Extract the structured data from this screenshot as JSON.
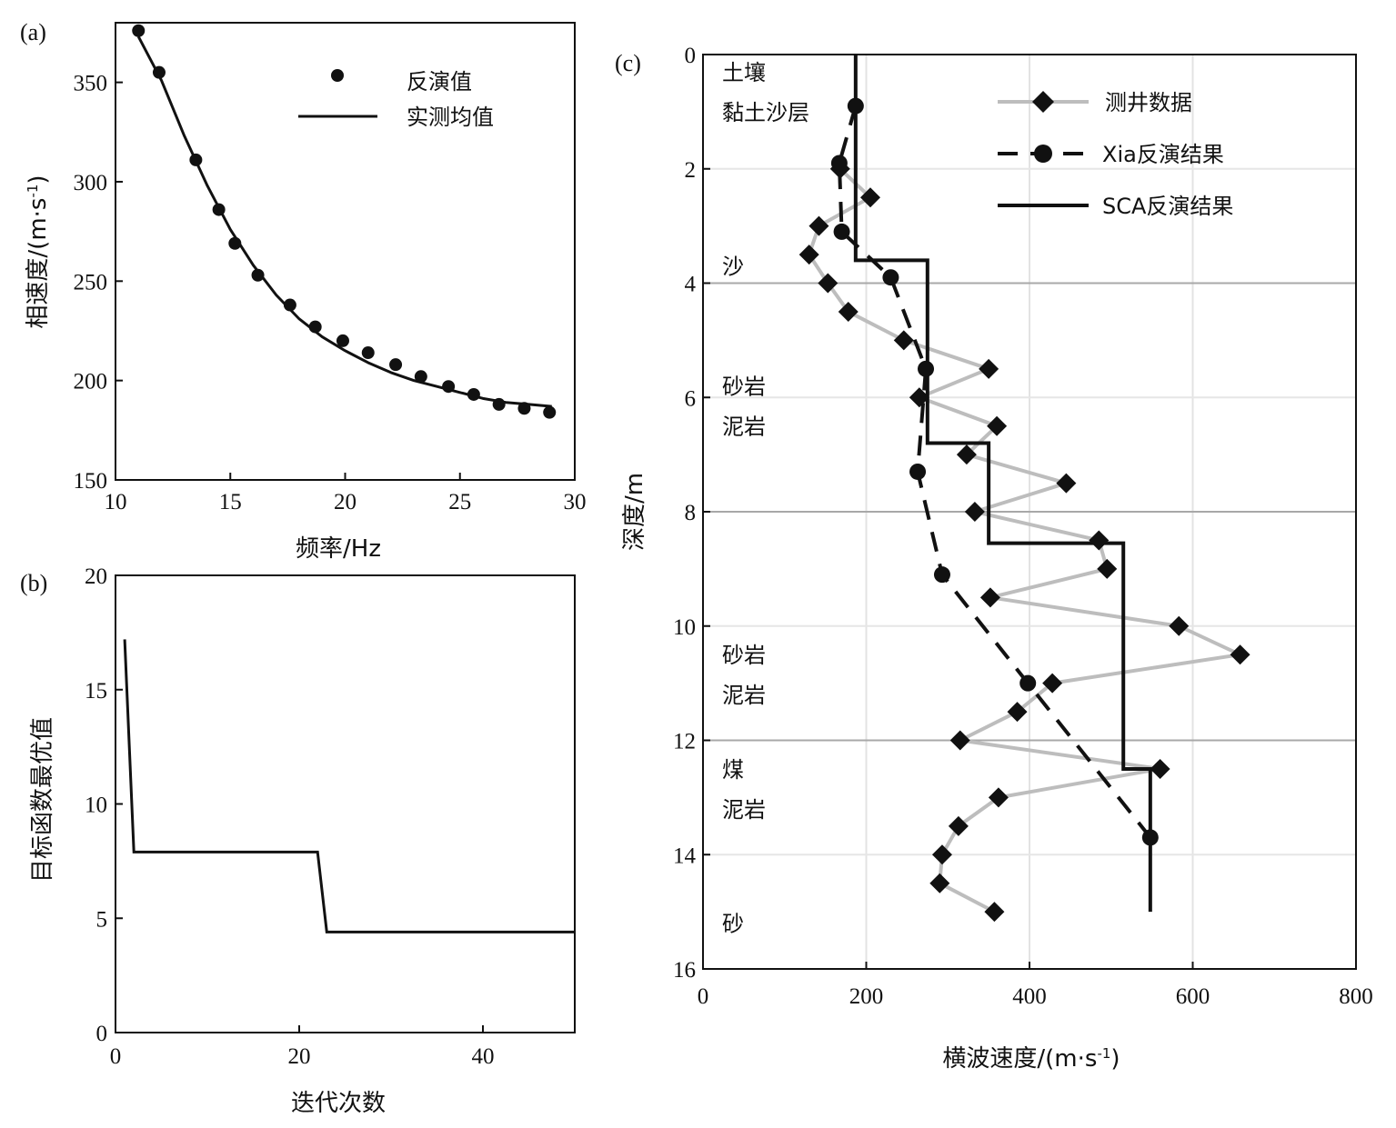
{
  "chart_data": [
    {
      "panel_label": "(a)",
      "type": "scatter",
      "xlabel": "频率/Hz",
      "ylabel_main": "相速度/(m·s",
      "ylabel_sup": "-1",
      "ylabel_end": ")",
      "xlim": [
        10,
        30
      ],
      "ylim": [
        150,
        380
      ],
      "xticks": [
        "10",
        "15",
        "20",
        "25",
        "30"
      ],
      "yticks": [
        "150",
        "200",
        "250",
        "300",
        "350"
      ],
      "legend": [
        "反演值",
        "实测均值"
      ],
      "series": [
        {
          "name": "反演值",
          "x": [
            11.0,
            11.9,
            13.5,
            14.5,
            15.2,
            16.2,
            17.6,
            18.7,
            19.9,
            21.0,
            22.2,
            23.3,
            24.5,
            25.6,
            26.7,
            27.8,
            28.9
          ],
          "y": [
            376,
            355,
            311,
            286,
            269,
            253,
            238,
            227,
            220,
            214,
            208,
            202,
            197,
            193,
            188,
            186,
            184
          ]
        },
        {
          "name": "实测均值",
          "x": [
            11.0,
            12.0,
            13.0,
            14.0,
            15.0,
            16.0,
            17.0,
            18.0,
            19.0,
            20.0,
            21.0,
            22.0,
            23.0,
            24.0,
            25.0,
            26.0,
            27.0,
            28.0,
            29.0
          ],
          "y": [
            373,
            351,
            323,
            298,
            276,
            258,
            243,
            231,
            222,
            215,
            209,
            204,
            200,
            197,
            194,
            191,
            189,
            188,
            187
          ]
        }
      ]
    },
    {
      "panel_label": "(b)",
      "type": "line",
      "xlabel": "迭代次数",
      "ylabel": "目标函数最优值",
      "xlim": [
        0,
        50
      ],
      "ylim": [
        0,
        20
      ],
      "xticks": [
        "0",
        "20",
        "40"
      ],
      "yticks": [
        "0",
        "5",
        "10",
        "15",
        "20"
      ],
      "series": [
        {
          "x": [
            1,
            2,
            22,
            23,
            50
          ],
          "y": [
            17.2,
            7.9,
            7.9,
            4.4,
            4.4
          ]
        }
      ]
    },
    {
      "panel_label": "(c)",
      "type": "line",
      "xlabel_main": "横波速度/(m·s",
      "xlabel_sup": "-1",
      "xlabel_end": ")",
      "ylabel": "深度/m",
      "xlim": [
        0,
        800
      ],
      "ylim": [
        16,
        0
      ],
      "xticks": [
        "0",
        "200",
        "400",
        "600",
        "800"
      ],
      "yticks": [
        "0",
        "2",
        "4",
        "6",
        "8",
        "10",
        "12",
        "14",
        "16"
      ],
      "legend": [
        "测井数据",
        "Xia反演结果",
        "SCA反演结果"
      ],
      "layer_labels": [
        {
          "text": "土壤",
          "depth": 0.3
        },
        {
          "text": "黏土沙层",
          "depth": 1.0
        },
        {
          "text": "沙",
          "depth": 3.7
        },
        {
          "text": "砂岩",
          "depth": 5.8
        },
        {
          "text": "泥岩",
          "depth": 6.5
        },
        {
          "text": "砂岩",
          "depth": 10.5
        },
        {
          "text": "泥岩",
          "depth": 11.2
        },
        {
          "text": "煤",
          "depth": 12.5
        },
        {
          "text": "泥岩",
          "depth": 13.2
        },
        {
          "text": "砂",
          "depth": 15.2
        }
      ],
      "series": [
        {
          "name": "测井数据",
          "x": [
            168,
            205,
            142,
            130,
            153,
            178,
            246,
            350,
            265,
            360,
            323,
            445,
            333,
            485,
            495,
            352,
            583,
            658,
            428,
            385,
            315,
            560,
            362,
            313,
            293,
            290,
            357
          ],
          "y": [
            2.0,
            2.5,
            3.0,
            3.5,
            4.0,
            4.5,
            5.0,
            5.5,
            6.0,
            6.5,
            7.0,
            7.5,
            8.0,
            8.5,
            9.0,
            9.5,
            10.0,
            10.5,
            11.0,
            11.5,
            12.0,
            12.5,
            13.0,
            13.5,
            14.0,
            14.5,
            15.0
          ]
        },
        {
          "name": "Xia反演结果",
          "x": [
            187,
            167,
            170,
            230,
            273,
            263,
            293,
            398,
            548
          ],
          "y": [
            0.9,
            1.9,
            3.1,
            3.9,
            5.5,
            7.3,
            9.1,
            11.0,
            13.7
          ]
        },
        {
          "name": "SCA反演结果",
          "x": [
            187,
            187,
            275,
            275,
            350,
            350,
            515,
            515,
            548,
            548
          ],
          "y": [
            0,
            3.6,
            3.6,
            6.8,
            6.8,
            8.55,
            8.55,
            12.5,
            12.5,
            15.0
          ]
        }
      ]
    }
  ]
}
